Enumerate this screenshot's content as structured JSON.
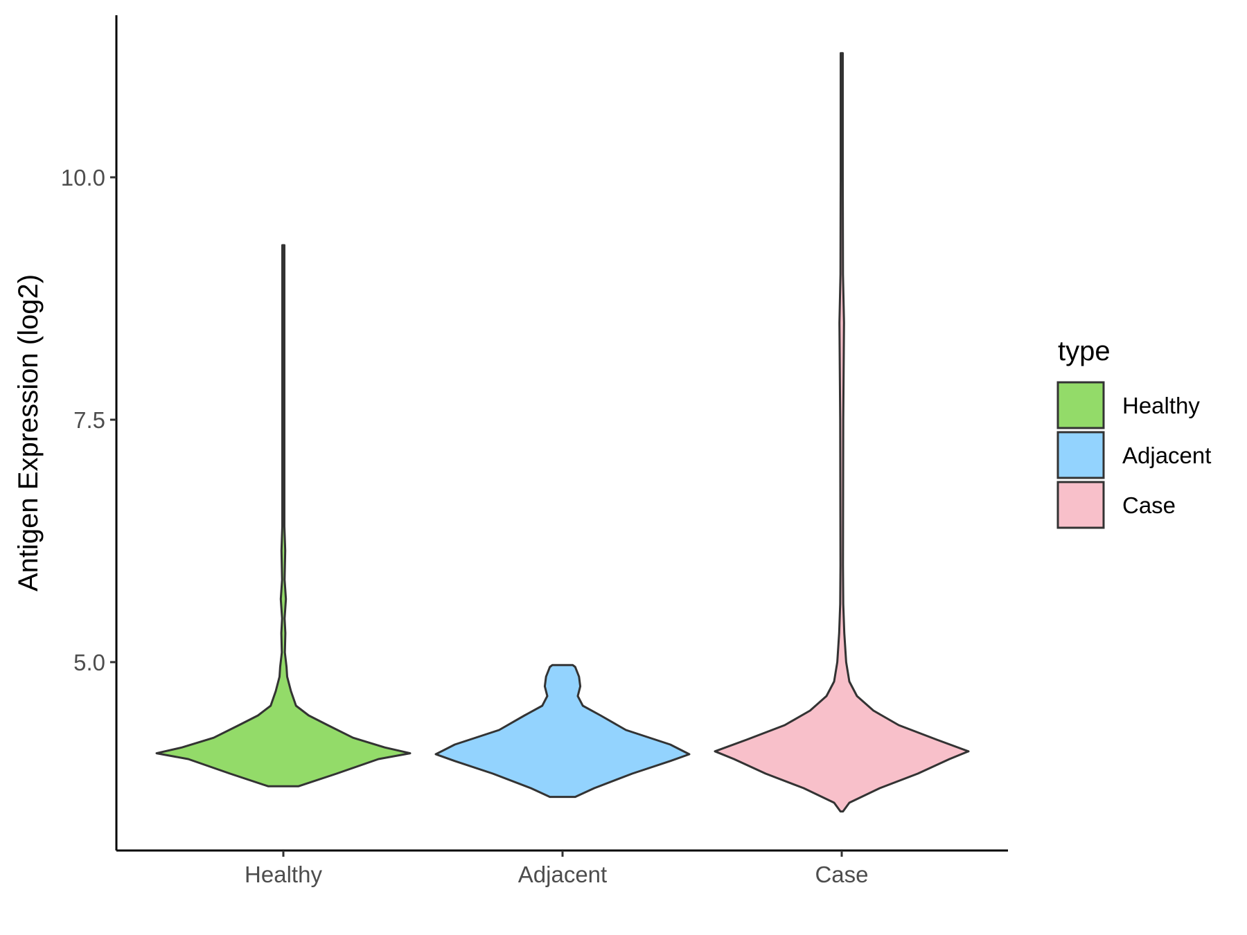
{
  "chart_data": {
    "type": "violin",
    "categories": [
      "Healthy",
      "Adjacent",
      "Case"
    ],
    "ylabel": "Antigen Expression (log2)",
    "xlabel": "",
    "ylim": [
      3.0,
      11.8
    ],
    "yticks": [
      5.0,
      7.5,
      10.0
    ],
    "ytick_labels": [
      "5.0",
      "7.5",
      "10.0"
    ],
    "grid": false,
    "legend": {
      "title": "type",
      "placement": "right",
      "items": [
        {
          "label": "Healthy",
          "color": "#93DB69"
        },
        {
          "label": "Adjacent",
          "color": "#93D3FE"
        },
        {
          "label": "Case",
          "color": "#F8C0CA"
        }
      ]
    },
    "series": [
      {
        "category": "Healthy",
        "color": "#93DB69",
        "min": 3.72,
        "max": 9.3,
        "profile": [
          [
            3.72,
            0.12
          ],
          [
            3.85,
            0.42
          ],
          [
            4.0,
            0.75
          ],
          [
            4.06,
            1.0
          ],
          [
            4.12,
            0.8
          ],
          [
            4.22,
            0.55
          ],
          [
            4.35,
            0.35
          ],
          [
            4.45,
            0.2
          ],
          [
            4.55,
            0.1
          ],
          [
            4.7,
            0.06
          ],
          [
            4.85,
            0.03
          ],
          [
            4.95,
            0.025
          ],
          [
            5.1,
            0.012
          ],
          [
            5.3,
            0.016
          ],
          [
            5.45,
            0.01
          ],
          [
            5.65,
            0.02
          ],
          [
            5.85,
            0.01
          ],
          [
            6.15,
            0.015
          ],
          [
            6.4,
            0.008
          ],
          [
            7.5,
            0.008
          ],
          [
            9.3,
            0.008
          ]
        ]
      },
      {
        "category": "Adjacent",
        "color": "#93D3FE",
        "min": 3.61,
        "max": 4.97,
        "profile": [
          [
            3.61,
            0.1
          ],
          [
            3.7,
            0.25
          ],
          [
            3.85,
            0.55
          ],
          [
            3.98,
            0.85
          ],
          [
            4.05,
            1.0
          ],
          [
            4.15,
            0.85
          ],
          [
            4.3,
            0.5
          ],
          [
            4.45,
            0.3
          ],
          [
            4.55,
            0.16
          ],
          [
            4.65,
            0.12
          ],
          [
            4.75,
            0.14
          ],
          [
            4.85,
            0.13
          ],
          [
            4.95,
            0.1
          ],
          [
            4.97,
            0.08
          ]
        ]
      },
      {
        "category": "Case",
        "color": "#F8C0CA",
        "min": 3.46,
        "max": 11.28,
        "profile": [
          [
            3.46,
            0.01
          ],
          [
            3.55,
            0.06
          ],
          [
            3.7,
            0.3
          ],
          [
            3.85,
            0.6
          ],
          [
            4.0,
            0.85
          ],
          [
            4.08,
            1.0
          ],
          [
            4.2,
            0.75
          ],
          [
            4.35,
            0.45
          ],
          [
            4.5,
            0.25
          ],
          [
            4.65,
            0.12
          ],
          [
            4.8,
            0.06
          ],
          [
            5.0,
            0.035
          ],
          [
            5.3,
            0.02
          ],
          [
            5.6,
            0.012
          ],
          [
            6.0,
            0.01
          ],
          [
            7.5,
            0.012
          ],
          [
            8.5,
            0.018
          ],
          [
            9.0,
            0.01
          ],
          [
            10.0,
            0.008
          ],
          [
            11.28,
            0.008
          ]
        ]
      }
    ]
  }
}
